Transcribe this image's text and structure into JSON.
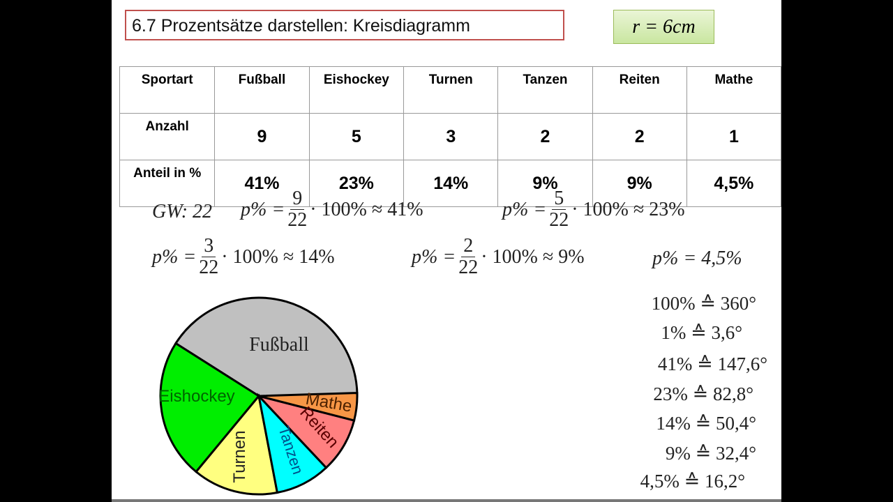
{
  "title": "6.7 Prozentsätze darstellen: Kreisdiagramm",
  "radius_label": "r = 6cm",
  "table": {
    "row_headers": [
      "Sportart",
      "Anzahl",
      "Anteil in %"
    ],
    "columns": [
      {
        "name": "Fußball",
        "count": "9",
        "percent": "41%"
      },
      {
        "name": "Eishockey",
        "count": "5",
        "percent": "23%"
      },
      {
        "name": "Turnen",
        "count": "3",
        "percent": "14%"
      },
      {
        "name": "Tanzen",
        "count": "2",
        "percent": "9%"
      },
      {
        "name": "Reiten",
        "count": "2",
        "percent": "9%"
      },
      {
        "name": "Mathe",
        "count": "1",
        "percent": "4,5%"
      }
    ]
  },
  "formulas": {
    "gw": "GW: 22",
    "lhs": "p% =",
    "times": "· 100% ≈",
    "f1": {
      "num": "9",
      "den": "22",
      "res": "41%"
    },
    "f2": {
      "num": "5",
      "den": "22",
      "res": "23%"
    },
    "f3": {
      "num": "3",
      "den": "22",
      "res": "14%"
    },
    "f4": {
      "num": "2",
      "den": "22",
      "res": "9%"
    },
    "f5": "p% = 4,5%"
  },
  "degrees": [
    "100% ≙ 360°",
    "1% ≙ 3,6°",
    "41% ≙ 147,6°",
    "23% ≙ 82,8°",
    "14% ≙ 50,4°",
    "9% ≙ 32,4°",
    "4,5% ≙ 16,2°"
  ],
  "chart_data": {
    "type": "pie",
    "title": "",
    "start": "3 o'clock, counterclockwise",
    "slices": [
      {
        "label": "Fußball",
        "degrees": 147.6,
        "percent": 41,
        "color": "#c0c0c0"
      },
      {
        "label": "Eishockey",
        "degrees": 82.8,
        "percent": 23,
        "color": "#00ee00"
      },
      {
        "label": "Turnen",
        "degrees": 50.4,
        "percent": 14,
        "color": "#ffff80"
      },
      {
        "label": "Tanzen",
        "degrees": 32.4,
        "percent": 9,
        "color": "#00ffff"
      },
      {
        "label": "Reiten",
        "degrees": 32.4,
        "percent": 9,
        "color": "#ff8080"
      },
      {
        "label": "Mathe",
        "degrees": 16.2,
        "percent": 4.5,
        "color": "#f79646"
      }
    ]
  }
}
